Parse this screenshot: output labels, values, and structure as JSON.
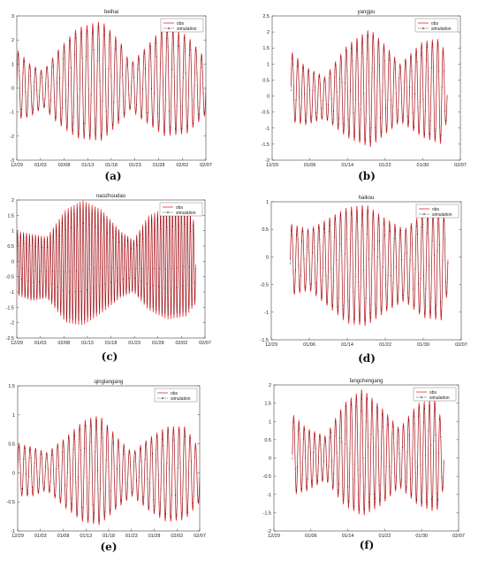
{
  "chart_data": [
    {
      "type": "line",
      "panel_label": "(a)",
      "title": "beihai",
      "x_ticks": [
        "12/29",
        "01/03",
        "02/08",
        "01/13",
        "01/18",
        "01/23",
        "01/28",
        "02/02",
        "02/07"
      ],
      "ylim": [
        -3,
        3
      ],
      "y_ticks": [
        -3,
        -2,
        -1,
        0,
        1,
        2,
        3
      ],
      "legend": {
        "placement": "top-right",
        "entries": [
          "obs",
          "simulation"
        ]
      },
      "grid": false,
      "series": [
        {
          "name": "obs",
          "color": "#e8262d",
          "style": "solid"
        },
        {
          "name": "simulation",
          "color": "#000000",
          "style": "dotted-markers"
        }
      ],
      "envelope": {
        "x": [
          0,
          0.07,
          0.14,
          0.22,
          0.32,
          0.45,
          0.55,
          0.6,
          0.66,
          0.78,
          0.9,
          1.0
        ],
        "upper": [
          1.6,
          1.0,
          0.7,
          1.6,
          2.5,
          2.8,
          1.9,
          1.0,
          1.5,
          2.6,
          2.2,
          1.2
        ],
        "lower": [
          -1.3,
          -1.2,
          -0.8,
          -1.5,
          -2.1,
          -2.2,
          -1.4,
          -0.9,
          -1.3,
          -2.0,
          -1.9,
          -1.1
        ],
        "mean": 0.2,
        "cycles": 33
      }
    },
    {
      "type": "line",
      "panel_label": "(b)",
      "title": "yangpu",
      "x_ticks": [
        "12/29",
        "01/06",
        "01/14",
        "01/22",
        "01/30",
        "02/07"
      ],
      "ylim": [
        -2,
        2.5
      ],
      "y_ticks": [
        -2,
        -1.5,
        -1,
        -0.5,
        0,
        0.5,
        1,
        1.5,
        2,
        2.5
      ],
      "legend": {
        "placement": "top-right",
        "entries": [
          "obs",
          "simulation"
        ]
      },
      "grid": false,
      "series": [
        {
          "name": "obs",
          "color": "#e8262d",
          "style": "solid"
        },
        {
          "name": "simulation",
          "color": "#000000",
          "style": "dotted-markers"
        }
      ],
      "envelope": {
        "x": [
          0.1,
          0.18,
          0.28,
          0.4,
          0.52,
          0.6,
          0.68,
          0.8,
          0.9,
          0.93
        ],
        "upper": [
          1.4,
          0.9,
          0.6,
          1.6,
          2.1,
          1.6,
          1.0,
          1.7,
          1.8,
          0.8
        ],
        "lower": [
          -0.8,
          -0.9,
          -0.7,
          -1.3,
          -1.6,
          -1.2,
          -0.8,
          -1.3,
          -1.5,
          -0.7
        ],
        "mean": 0.2,
        "cycles": 29
      }
    },
    {
      "type": "line",
      "panel_label": "(c)",
      "title": "naozhoudao",
      "x_ticks": [
        "12/29",
        "01/03",
        "02/08",
        "01/13",
        "01/18",
        "01/23",
        "01/28",
        "02/02",
        "02/07"
      ],
      "ylim": [
        -2.5,
        2
      ],
      "y_ticks": [
        -2.5,
        -2,
        -1.5,
        -1,
        -0.5,
        0,
        0.5,
        1,
        1.5,
        2
      ],
      "legend": {
        "placement": "top-right",
        "entries": [
          "obs",
          "simulation"
        ]
      },
      "grid": false,
      "series": [
        {
          "name": "obs",
          "color": "#e8262d",
          "style": "solid"
        },
        {
          "name": "simulation",
          "color": "#000000",
          "style": "dotted-markers"
        }
      ],
      "envelope": {
        "x": [
          0,
          0.08,
          0.16,
          0.26,
          0.35,
          0.45,
          0.55,
          0.62,
          0.7,
          0.8,
          0.9,
          0.95
        ],
        "upper": [
          1.0,
          0.9,
          0.8,
          1.7,
          2.0,
          1.7,
          1.0,
          0.7,
          1.5,
          1.8,
          1.9,
          1.2
        ],
        "lower": [
          -1.1,
          -1.3,
          -1.2,
          -2.0,
          -2.1,
          -1.7,
          -1.2,
          -1.0,
          -1.6,
          -1.9,
          -1.8,
          -1.4
        ],
        "mean": 0.0,
        "cycles": 60
      }
    },
    {
      "type": "line",
      "panel_label": "(d)",
      "title": "haikou",
      "x_ticks": [
        "12/29",
        "01/06",
        "01/14",
        "01/22",
        "01/30",
        "02/07"
      ],
      "ylim": [
        -1.5,
        1
      ],
      "y_ticks": [
        -1.5,
        -1,
        -0.5,
        0,
        0.5,
        1
      ],
      "legend": {
        "placement": "top-right",
        "entries": [
          "obs",
          "simulation"
        ]
      },
      "grid": false,
      "series": [
        {
          "name": "obs",
          "color": "#e8262d",
          "style": "solid"
        },
        {
          "name": "simulation",
          "color": "#000000",
          "style": "dotted-markers"
        }
      ],
      "envelope": {
        "x": [
          0.1,
          0.2,
          0.3,
          0.4,
          0.5,
          0.6,
          0.7,
          0.8,
          0.9,
          0.93
        ],
        "upper": [
          0.6,
          0.5,
          0.7,
          0.9,
          0.95,
          0.7,
          0.5,
          0.8,
          0.85,
          0.5
        ],
        "lower": [
          -0.7,
          -0.6,
          -0.9,
          -1.2,
          -1.25,
          -1.0,
          -0.8,
          -1.1,
          -1.15,
          -0.6
        ],
        "mean": -0.1,
        "cycles": 29
      }
    },
    {
      "type": "line",
      "panel_label": "(e)",
      "title": "qinglangang",
      "x_ticks": [
        "12/29",
        "01/03",
        "01/08",
        "01/13",
        "01/18",
        "01/23",
        "01/28",
        "02/02",
        "02/07"
      ],
      "ylim": [
        -1,
        1.5
      ],
      "y_ticks": [
        -1,
        -0.5,
        0,
        0.5,
        1,
        1.5
      ],
      "legend": {
        "placement": "top-right",
        "entries": [
          "obs",
          "simulation"
        ]
      },
      "grid": false,
      "series": [
        {
          "name": "obs",
          "color": "#e8262d",
          "style": "solid"
        },
        {
          "name": "simulation",
          "color": "#000000",
          "style": "dotted-markers"
        }
      ],
      "envelope": {
        "x": [
          0,
          0.08,
          0.16,
          0.26,
          0.36,
          0.45,
          0.55,
          0.63,
          0.72,
          0.82,
          0.92,
          1.0
        ],
        "upper": [
          0.5,
          0.45,
          0.35,
          0.6,
          0.9,
          1.0,
          0.6,
          0.35,
          0.6,
          0.8,
          0.8,
          0.4
        ],
        "lower": [
          -0.4,
          -0.4,
          -0.3,
          -0.6,
          -0.85,
          -0.9,
          -0.6,
          -0.4,
          -0.65,
          -0.85,
          -0.8,
          -0.5
        ],
        "mean": 0.05,
        "cycles": 33
      }
    },
    {
      "type": "line",
      "panel_label": "(f)",
      "title": "fangchengang",
      "x_ticks": [
        "12/29",
        "01/06",
        "01/14",
        "01/22",
        "01/30",
        "02/07"
      ],
      "ylim": [
        -2,
        2
      ],
      "y_ticks": [
        -2,
        -1.5,
        -1,
        -0.5,
        0,
        0.5,
        1,
        1.5,
        2
      ],
      "legend": {
        "placement": "top-right",
        "entries": [
          "obs",
          "simulation"
        ]
      },
      "grid": false,
      "series": [
        {
          "name": "obs",
          "color": "#e8262d",
          "style": "solid"
        },
        {
          "name": "simulation",
          "color": "#000000",
          "style": "dotted-markers"
        }
      ],
      "envelope": {
        "x": [
          0.1,
          0.18,
          0.28,
          0.38,
          0.48,
          0.58,
          0.68,
          0.78,
          0.88,
          0.92
        ],
        "upper": [
          1.2,
          0.8,
          0.6,
          1.5,
          1.9,
          1.4,
          0.8,
          1.5,
          1.6,
          0.7
        ],
        "lower": [
          -1.0,
          -0.9,
          -0.6,
          -1.3,
          -1.6,
          -1.3,
          -0.8,
          -1.3,
          -1.5,
          -0.8
        ],
        "mean": 0.1,
        "cycles": 29
      }
    }
  ]
}
